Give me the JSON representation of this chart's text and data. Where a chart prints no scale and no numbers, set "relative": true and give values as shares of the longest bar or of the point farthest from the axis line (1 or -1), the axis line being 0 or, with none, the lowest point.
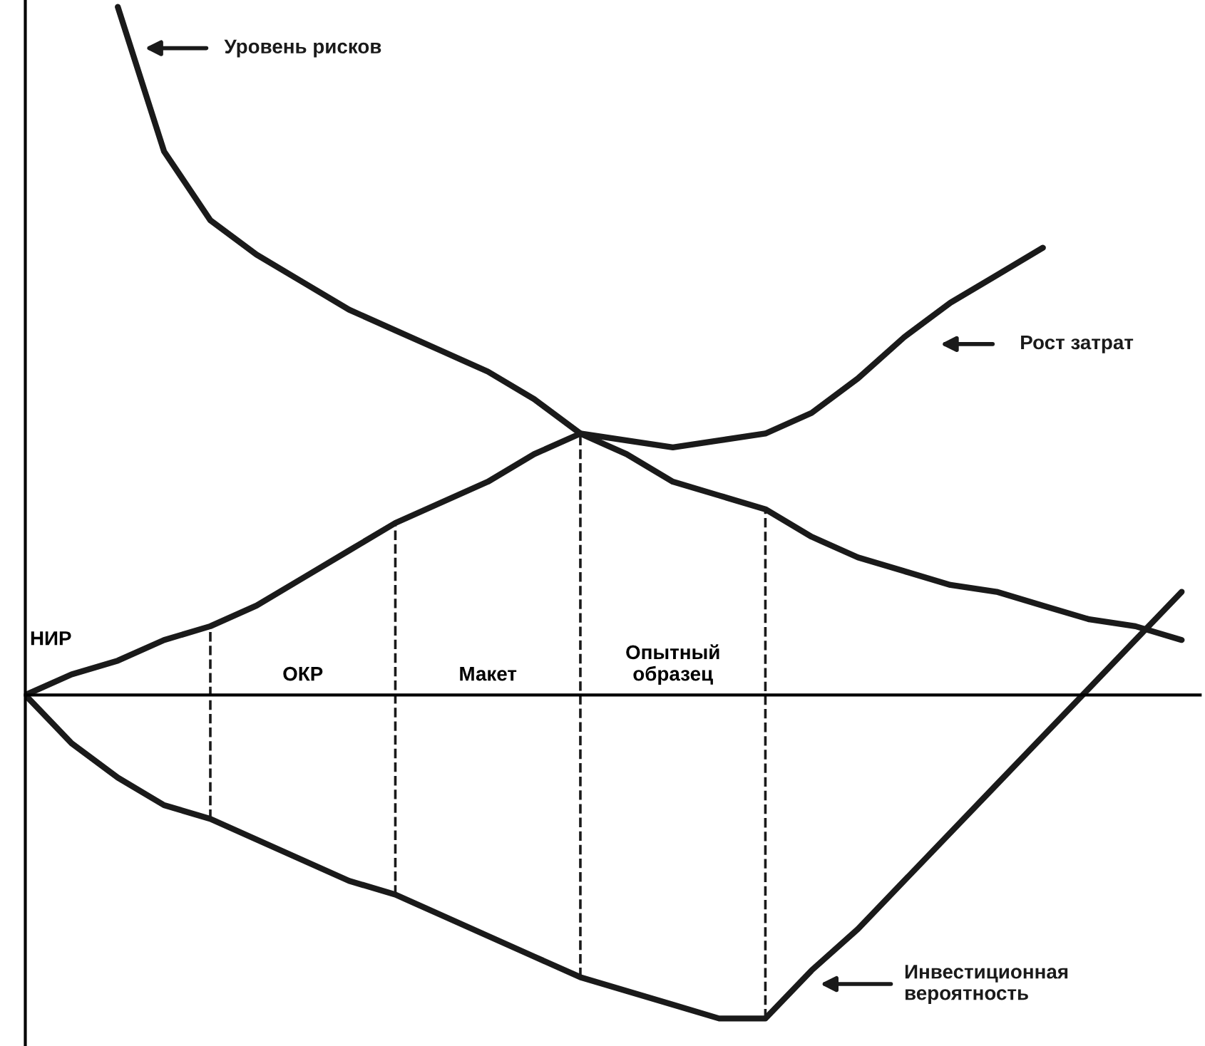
{
  "chart_data": {
    "type": "line",
    "relative": true,
    "categories": [
      null,
      null,
      null,
      null,
      null,
      null,
      null,
      null,
      null,
      null,
      null,
      null,
      null,
      null,
      null,
      null,
      null,
      null,
      null,
      null,
      null,
      null,
      null,
      null,
      null,
      null
    ],
    "series": [
      {
        "name": "Уровень рисков",
        "color": "#1a1a1a",
        "values": [
          null,
          null,
          1.0,
          0.79,
          0.69,
          0.64,
          0.6,
          0.56,
          0.53,
          0.5,
          0.47,
          0.43,
          0.38,
          0.35,
          0.31,
          0.29,
          0.27,
          0.23,
          0.2,
          0.18,
          0.16,
          0.15,
          0.13,
          0.11,
          0.1,
          0.08
        ]
      },
      {
        "name": "Рост затрат",
        "color": "#1a1a1a",
        "values": [
          0,
          0.03,
          0.05,
          0.08,
          0.1,
          0.13,
          0.17,
          0.21,
          0.25,
          0.28,
          0.31,
          0.35,
          0.38,
          0.37,
          0.36,
          0.37,
          0.38,
          0.41,
          0.46,
          0.52,
          0.57,
          0.61,
          0.65,
          null,
          null,
          null
        ]
      },
      {
        "name": "Инвестиционная\nвероятность",
        "color": "#1a1a1a",
        "values": [
          0,
          -0.07,
          -0.12,
          -0.16,
          -0.18,
          -0.21,
          -0.24,
          -0.27,
          -0.29,
          -0.32,
          -0.35,
          -0.38,
          -0.41,
          -0.43,
          -0.45,
          -0.47,
          -0.47,
          -0.4,
          -0.34,
          -0.27,
          -0.2,
          -0.13,
          -0.06,
          0.01,
          0.08,
          0.15
        ]
      }
    ],
    "annotations": [
      "НИР",
      "ОКР",
      "Макет",
      "Опытный\nобразец"
    ],
    "legend": "right",
    "marker": "none",
    "line_style": "solid"
  }
}
